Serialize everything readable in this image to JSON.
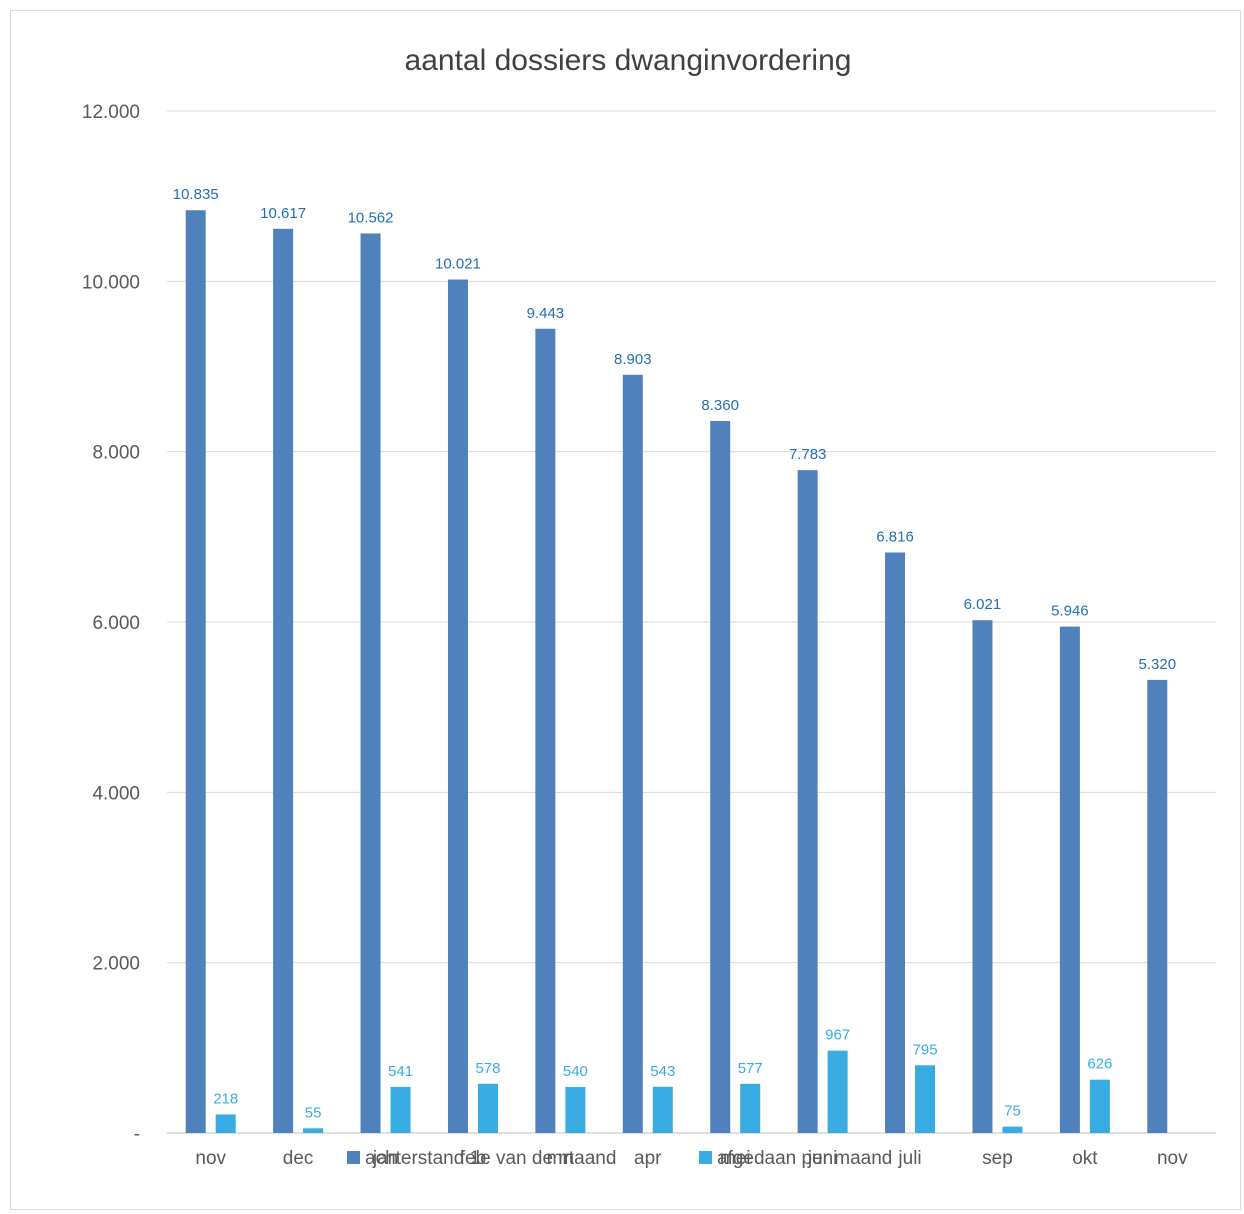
{
  "chart_data": {
    "type": "bar",
    "title": "aantal dossiers dwanginvordering",
    "categories": [
      "nov",
      "dec",
      "jan",
      "feb",
      "mrt",
      "apr",
      "mei",
      "juni",
      "juli",
      "sep",
      "okt",
      "nov"
    ],
    "ylim": [
      0,
      12000
    ],
    "yticks": [
      0,
      2000,
      4000,
      6000,
      8000,
      10000,
      12000
    ],
    "ytick_labels": [
      "-",
      "2.000",
      "4.000",
      "6.000",
      "8.000",
      "10.000",
      "12.000"
    ],
    "grid": true,
    "legend_position": "bottom",
    "series": [
      {
        "name": "achterstand 1e van de maand",
        "color": "#4f81bd",
        "label_color": "#1f6fb5",
        "values": [
          10835,
          10617,
          10562,
          10021,
          9443,
          8903,
          8360,
          7783,
          6816,
          6021,
          5946,
          5320
        ],
        "labels": [
          "10.835",
          "10.617",
          "10.562",
          "10.021",
          "9.443",
          "8.903",
          "8.360",
          "7.783",
          "6.816",
          "6.021",
          "5.946",
          "5.320"
        ]
      },
      {
        "name": "afgedaan per maand",
        "color": "#38ace2",
        "label_color": "#38ace2",
        "values": [
          218,
          55,
          541,
          578,
          540,
          543,
          577,
          967,
          795,
          75,
          626,
          null
        ],
        "labels": [
          "218",
          "55",
          "541",
          "578",
          "540",
          "543",
          "577",
          "967",
          "795",
          "75",
          "626",
          ""
        ]
      }
    ]
  }
}
